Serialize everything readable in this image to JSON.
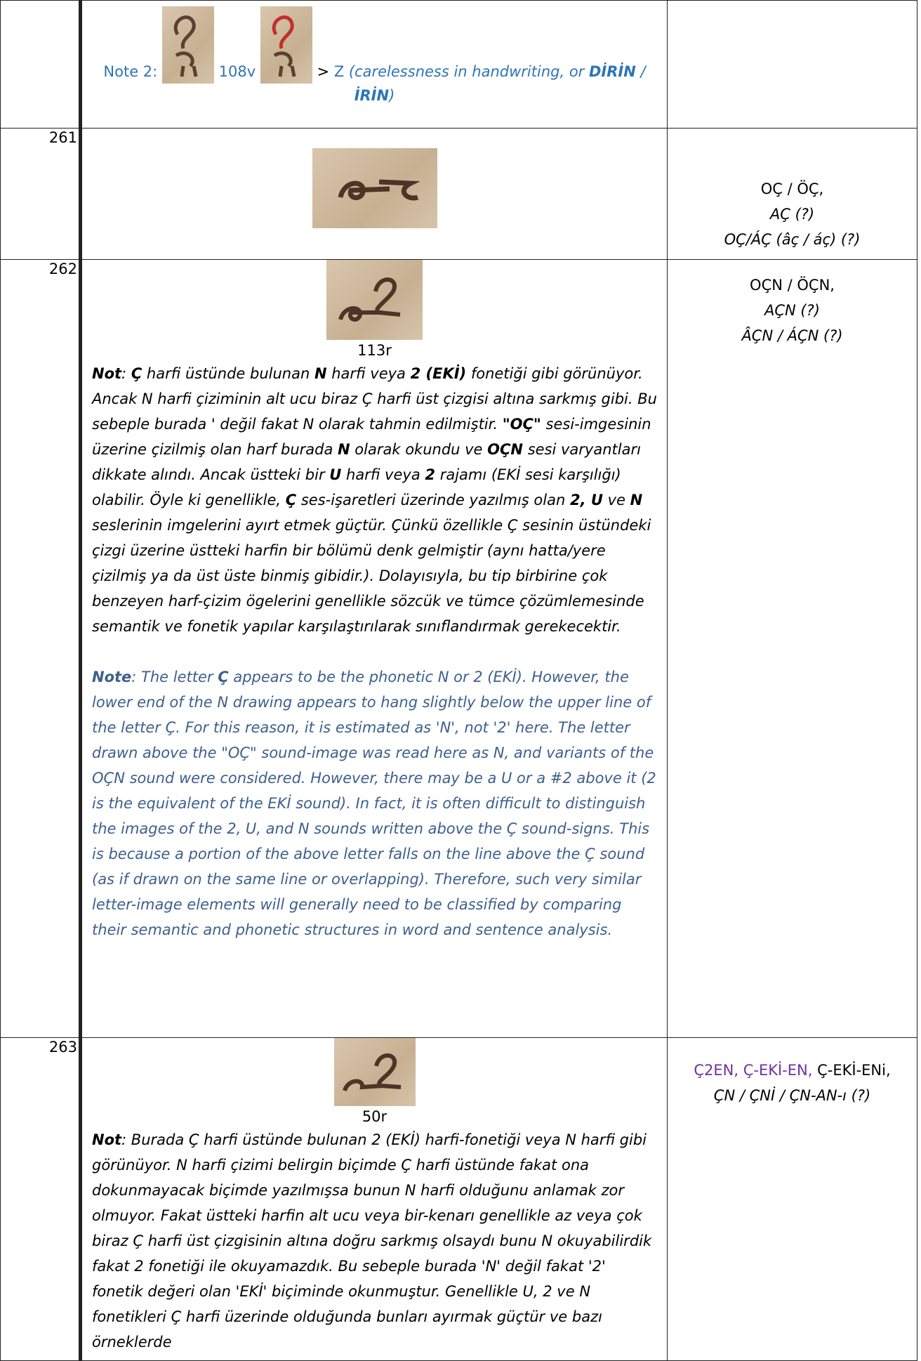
{
  "table": {
    "rows": [
      {
        "note_label": "Note 2:",
        "folio": "108v",
        "reading": ">",
        "reading_letter": "Z",
        "comment": [
          {
            "text": "(carelessness in handwriting, or "
          },
          {
            "text": "DİRİN",
            "bold": true
          },
          {
            "text": " / "
          },
          {
            "text": "İRİN",
            "bold": true
          },
          {
            "text": ")"
          }
        ]
      },
      {
        "number": "261",
        "readings": [
          [
            {
              "text": "OÇ / ÖÇ,"
            }
          ],
          [
            {
              "text": "AÇ (?)",
              "italic": true
            }
          ],
          [
            {
              "text": "OÇ/ÁÇ (âç / áç) (?)",
              "italic": true
            }
          ]
        ]
      },
      {
        "number": "262",
        "folio": "113r",
        "note_tr": [
          {
            "text": "Not",
            "bold": true
          },
          {
            "text": ":  "
          },
          {
            "text": "Ç",
            "bold": true
          },
          {
            "text": " harfi üstünde bulunan "
          },
          {
            "text": "N",
            "bold": true
          },
          {
            "text": " harfi veya "
          },
          {
            "text": "2 (EKİ)",
            "bold": true
          },
          {
            "text": " fonetiği gibi görünüyor. Ancak N harfi çiziminin alt ucu biraz Ç harfi üst çizgisi altına sarkmış gibi. Bu sebeple burada ' değil fakat N olarak tahmin edilmiştir. "
          },
          {
            "text": "\"OÇ\"",
            "bold": true
          },
          {
            "text": " sesi-imgesinin üzerine çizilmiş olan harf burada "
          },
          {
            "text": "N",
            "bold": true
          },
          {
            "text": " olarak okundu ve "
          },
          {
            "text": "OÇN",
            "bold": true
          },
          {
            "text": " sesi varyantları dikkate alındı. Ancak üstteki bir "
          },
          {
            "text": "U",
            "bold": true
          },
          {
            "text": " harfi veya "
          },
          {
            "text": "2",
            "bold": true
          },
          {
            "text": " rajamı (EKİ sesi karşılığı) olabilir. Öyle ki genellikle, "
          },
          {
            "text": "Ç",
            "bold": true
          },
          {
            "text": " ses-işaretleri üzerinde yazılmış olan "
          },
          {
            "text": "2, U",
            "bold": true
          },
          {
            "text": " ve "
          },
          {
            "text": "N",
            "bold": true
          },
          {
            "text": " seslerinin imgelerini ayırt etmek güçtür. Çünkü özellikle Ç sesinin üstündeki çizgi üzerine üstteki harfin bir bölümü denk gelmiştir (aynı hatta/yere çizilmiş ya da üst üste binmiş gibidir.). Dolayısıyla, bu tip birbirine çok benzeyen harf-çizim ögelerini genellikle sözcük ve tümce çözümlemesinde semantik ve fonetik yapılar karşılaştırılarak sınıflandırmak gerekecektir."
          }
        ],
        "note_en": [
          {
            "text": "Note",
            "bold": true
          },
          {
            "text": ":  The letter "
          },
          {
            "text": "Ç",
            "bold": true
          },
          {
            "text": " appears to be the phonetic N or 2 (EKİ). However, the lower end of the N drawing appears to hang slightly below the upper line of the letter Ç. For this reason, it is estimated as 'N', not '2' here. The letter drawn above the \"OÇ\" sound-image was read here as N, and variants of the OÇN sound were considered. However, there may be a U or a #2 above it (2 is the equivalent of the EKİ sound). In fact, it is often difficult to distinguish the images of the 2, U, and N sounds written above the Ç sound-signs. This is because a portion of the above letter falls on the line above the Ç sound (as if drawn on the same line or overlapping). Therefore, such very similar letter-image elements will generally need to be classified by comparing their semantic and phonetic structures in word and sentence analysis."
          }
        ],
        "readings": [
          [
            {
              "text": "OÇN / ÖÇN,"
            }
          ],
          [
            {
              "text": "AÇN (?)",
              "italic": true
            }
          ],
          [
            {
              "text": "ÂÇN / ÁÇN (?)",
              "italic": true
            }
          ]
        ]
      },
      {
        "number": "263",
        "folio": "50r",
        "note_tr": [
          {
            "text": "Not",
            "bold": true
          },
          {
            "text": ": Burada Ç harfi üstünde bulunan 2 (EKİ) harfi-fonetiği veya N harfi gibi görünüyor. N harfi çizimi belirgin biçimde Ç harfi üstünde fakat ona dokunmayacak biçimde yazılmışsa bunun N harfi olduğunu anlamak zor olmuyor. Fakat üstteki harfin alt ucu veya bir-kenarı genellikle az veya çok biraz Ç harfi üst çizgisinin altına doğru sarkmış olsaydı bunu N okuyabilirdik fakat 2 fonetiği ile okuyamazdık. Bu sebeple burada 'N' değil fakat '2' fonetik değeri olan 'EKİ' biçiminde okunmuştur. Genellikle U, 2 ve N fonetikleri Ç harfi üzerinde olduğunda bunları ayırmak güçtür ve bazı örneklerde"
          }
        ],
        "readings": [
          [
            {
              "text": "Ç2EN, Ç-EKİ-EN, ",
              "color": "#7030a0"
            },
            {
              "text": "Ç-EKİ-ENi,"
            }
          ],
          [
            {
              "text": "ÇN / ÇNİ / ÇN-AN-ı (?)",
              "italic": true
            }
          ]
        ]
      }
    ]
  }
}
